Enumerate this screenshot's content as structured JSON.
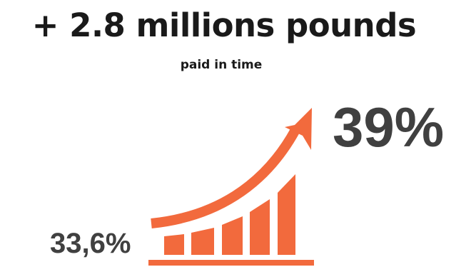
{
  "headline": "+ 2.8 millions pounds",
  "subheadline": "paid in time",
  "start_value": "33,6%",
  "end_value": "39%",
  "accent_color": "#f26a3d",
  "text_color": "#404040",
  "icons": {
    "growth": "growth-arrow-bars-icon"
  }
}
